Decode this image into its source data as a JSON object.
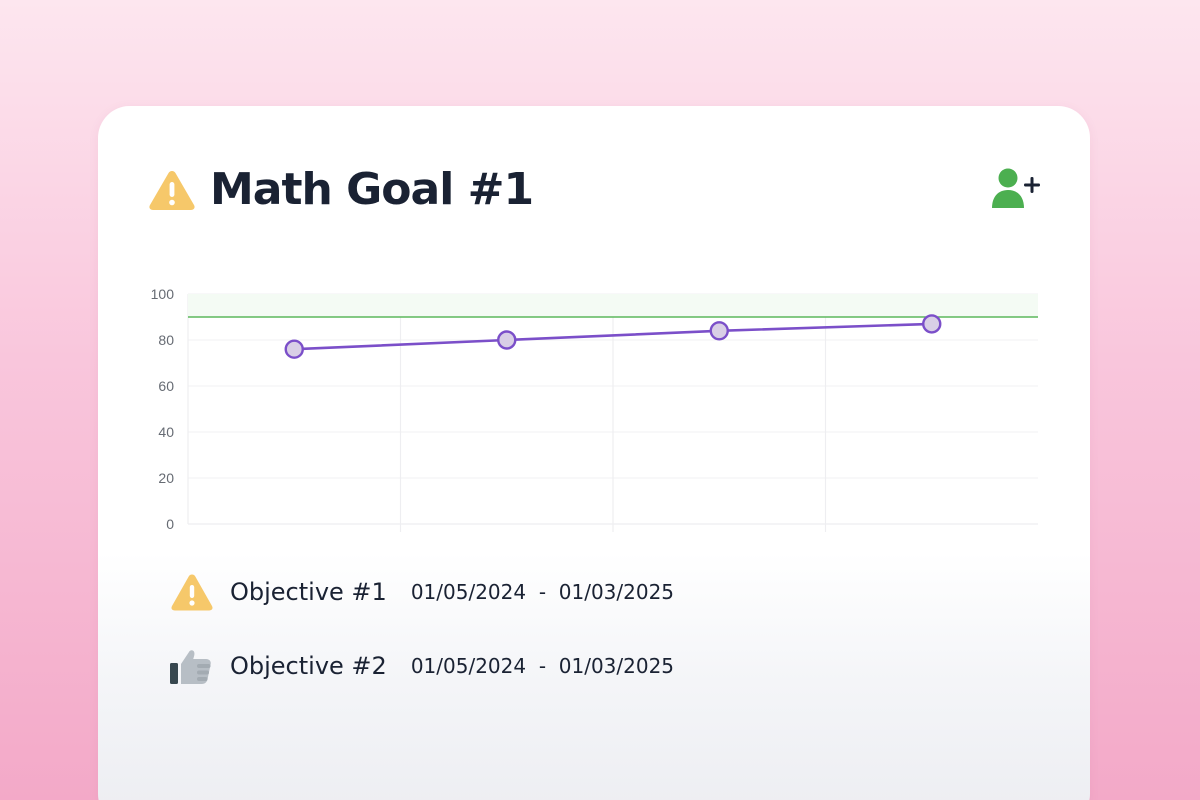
{
  "goal": {
    "title": "Math Goal #1",
    "status_icon": "warning-icon",
    "add_member_icon": "add-user-icon"
  },
  "colors": {
    "warning": "#f6c86a",
    "line": "#7b4fc9",
    "point_fill": "#d9cfe6",
    "target": "#5cb85c",
    "add_user": "#4caf50",
    "title": "#1a2233"
  },
  "chart_data": {
    "type": "line",
    "ylim": [
      0,
      100
    ],
    "yticks": [
      "0",
      "20",
      "40",
      "60",
      "80",
      "100"
    ],
    "x": [
      1,
      2,
      3,
      4
    ],
    "xlim": [
      0.5,
      4.5
    ],
    "series": [
      {
        "values": [
          76,
          80,
          84,
          87
        ]
      }
    ],
    "target_line": 90,
    "grid": true
  },
  "objectives": [
    {
      "label": "Objective #1",
      "start": "01/05/2024",
      "end": "01/03/2025",
      "icon": "warning-icon"
    },
    {
      "label": "Objective #2",
      "start": "01/05/2024",
      "end": "01/03/2025",
      "icon": "thumbs-up-icon"
    }
  ],
  "date_separator": "-"
}
